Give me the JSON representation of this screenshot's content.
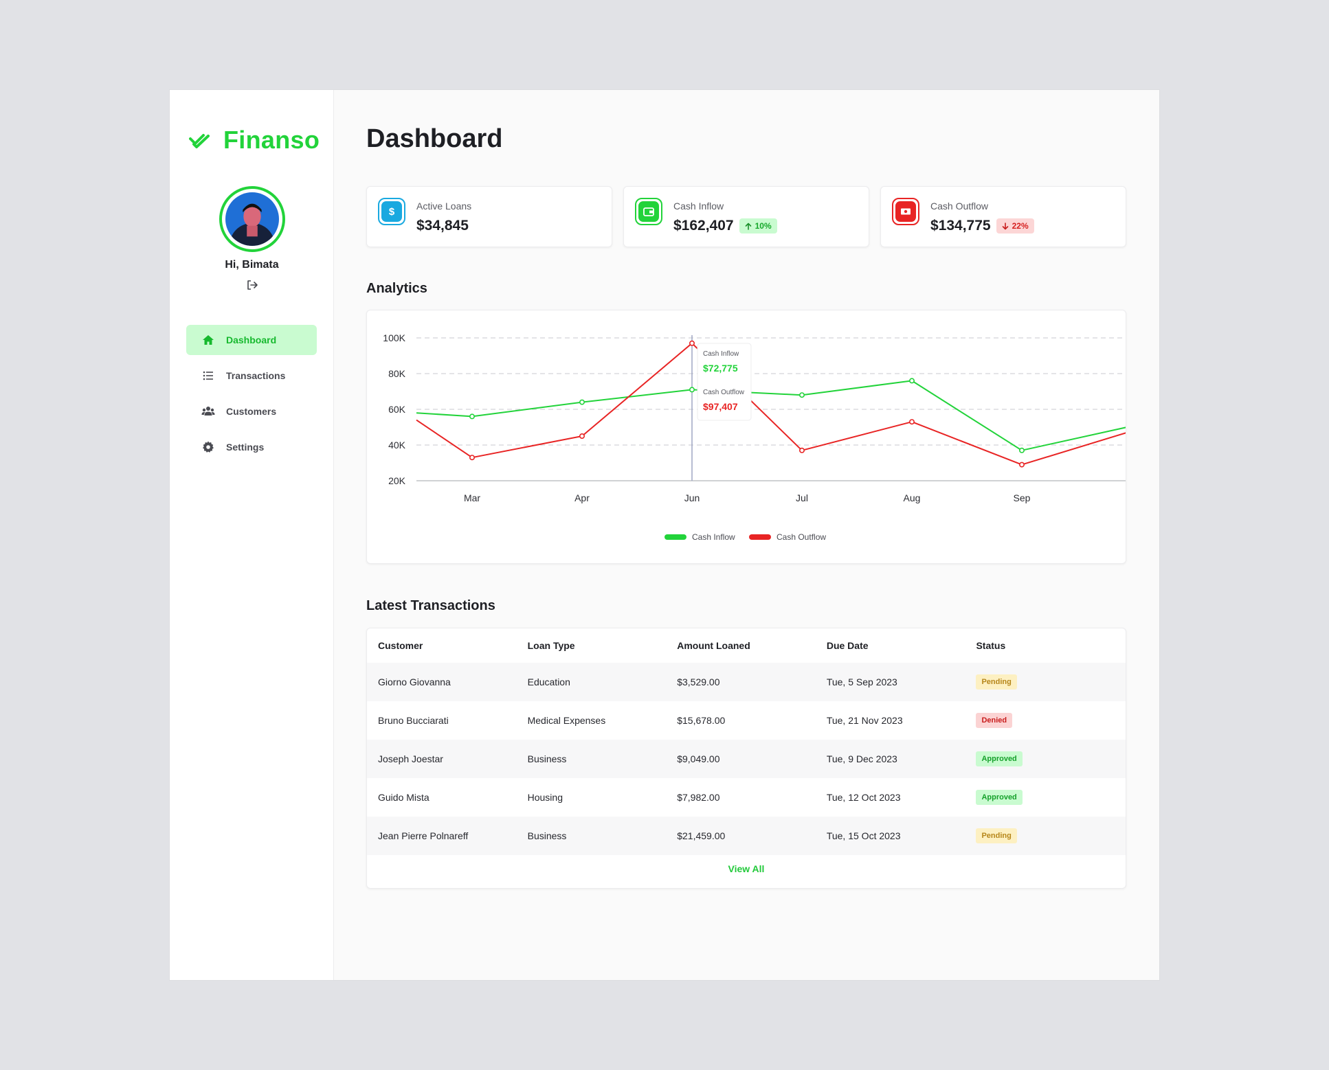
{
  "app": {
    "brand": "Finanso"
  },
  "user": {
    "greeting": "Hi, Bimata"
  },
  "colors": {
    "accent": "#22d33a",
    "inflow": "#22d33a",
    "outflow": "#e82424"
  },
  "nav": [
    {
      "label": "Dashboard",
      "icon": "home-icon",
      "active": true
    },
    {
      "label": "Transactions",
      "icon": "list-icon"
    },
    {
      "label": "Customers",
      "icon": "users-icon"
    },
    {
      "label": "Settings",
      "icon": "gear-icon"
    }
  ],
  "page": {
    "title": "Dashboard"
  },
  "stats": [
    {
      "label": "Active Loans",
      "value": "$34,845",
      "icon": "dollar-icon"
    },
    {
      "label": "Cash Inflow",
      "value": "$162,407",
      "change": "10%",
      "direction": "up",
      "icon": "wallet-icon"
    },
    {
      "label": "Cash Outflow",
      "value": "$134,775",
      "change": "22%",
      "direction": "down",
      "icon": "banknote-icon"
    }
  ],
  "analytics": {
    "title": "Analytics",
    "tooltip": {
      "inflow_label": "Cash Inflow",
      "inflow_value": "$72,775",
      "outflow_label": "Cash Outflow",
      "outflow_value": "$97,407"
    }
  },
  "chart_data": {
    "type": "line",
    "x": [
      "Mar",
      "Apr",
      "Jun",
      "Jul",
      "Aug",
      "Sep"
    ],
    "ylim": [
      20000,
      100000
    ],
    "yticks": [
      "100K",
      "80K",
      "60K",
      "40K",
      "20K"
    ],
    "grid": true,
    "legend_position": "bottom-center",
    "series": [
      {
        "name": "Cash Inflow",
        "values": [
          56000,
          64000,
          71000,
          68000,
          76000,
          37000
        ]
      },
      {
        "name": "Cash Outflow",
        "values": [
          33000,
          45000,
          97000,
          37000,
          53000,
          29000
        ]
      }
    ]
  },
  "transactions": {
    "title": "Latest Transactions",
    "columns": [
      "Customer",
      "Loan Type",
      "Amount Loaned",
      "Due Date",
      "Status"
    ],
    "rows": [
      {
        "customer": "Giorno Giovanna",
        "type": "Education",
        "amount": "$3,529.00",
        "due": "Tue, 5 Sep 2023",
        "status": "Pending"
      },
      {
        "customer": "Bruno Bucciarati",
        "type": "Medical Expenses",
        "amount": "$15,678.00",
        "due": "Tue, 21 Nov 2023",
        "status": "Denied"
      },
      {
        "customer": "Joseph Joestar",
        "type": "Business",
        "amount": "$9,049.00",
        "due": "Tue, 9 Dec 2023",
        "status": "Approved"
      },
      {
        "customer": "Guido Mista",
        "type": "Housing",
        "amount": "$7,982.00",
        "due": "Tue, 12 Oct 2023",
        "status": "Approved"
      },
      {
        "customer": "Jean Pierre Polnareff",
        "type": "Business",
        "amount": "$21,459.00",
        "due": "Tue, 15 Oct 2023",
        "status": "Pending"
      }
    ],
    "view_all": "View All"
  }
}
